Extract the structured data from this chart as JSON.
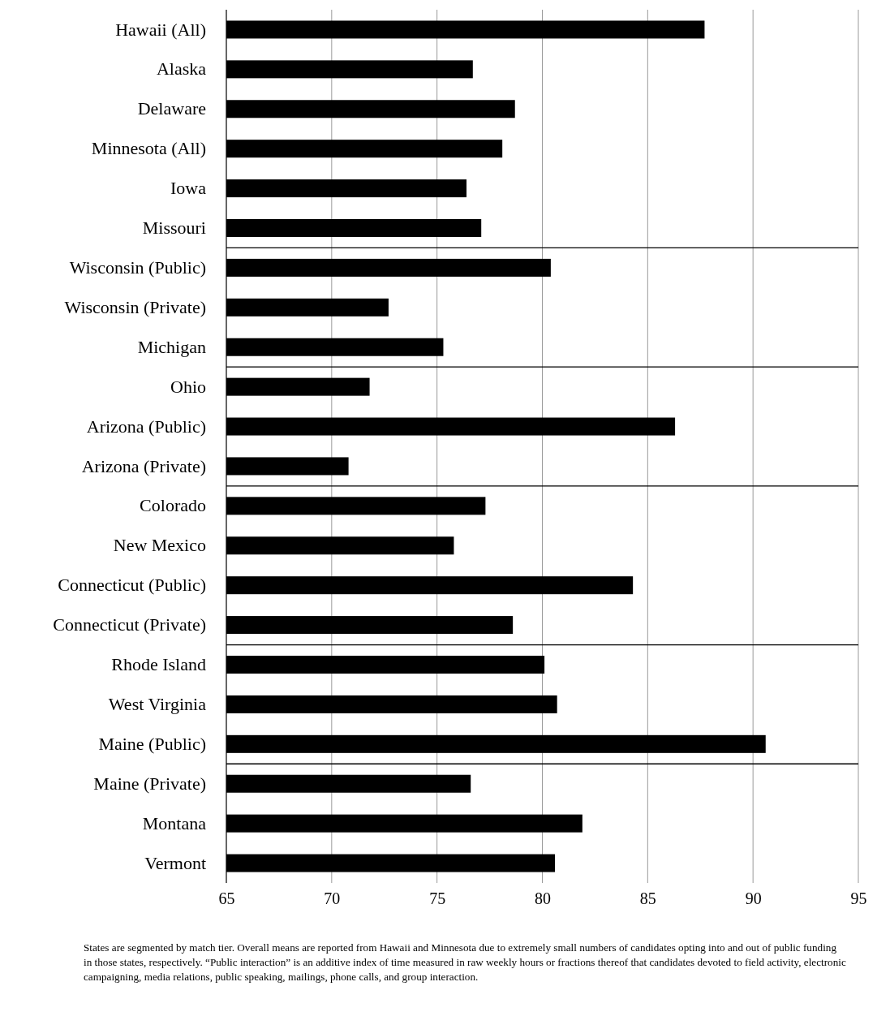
{
  "chart_data": {
    "type": "bar",
    "orientation": "horizontal",
    "categories": [
      "Hawaii (All)",
      "Alaska",
      "Delaware",
      "Minnesota (All)",
      "Iowa",
      "Missouri",
      "Wisconsin (Public)",
      "Wisconsin (Private)",
      "Michigan",
      "Ohio",
      "Arizona (Public)",
      "Arizona (Private)",
      "Colorado",
      "New Mexico",
      "Connecticut (Public)",
      "Connecticut (Private)",
      "Rhode Island",
      "West Virginia",
      "Maine (Public)",
      "Maine (Private)",
      "Montana",
      "Vermont"
    ],
    "values": [
      87.7,
      76.7,
      78.7,
      78.1,
      76.4,
      77.1,
      80.4,
      72.7,
      75.3,
      71.8,
      86.3,
      70.8,
      77.3,
      75.8,
      84.3,
      78.6,
      80.1,
      80.7,
      90.6,
      76.6,
      81.9,
      80.6
    ],
    "color": "#000000",
    "xlim": [
      65,
      95
    ],
    "xticks": [
      65,
      70,
      75,
      80,
      85,
      90,
      95
    ],
    "grid": "x",
    "ref_lines": [
      {
        "axis": "y",
        "value": "Missouri"
      },
      {
        "axis": "y",
        "value": "Michigan"
      },
      {
        "axis": "y",
        "value": "Arizona (Private)"
      },
      {
        "axis": "y",
        "value": "Connecticut (Private)"
      },
      {
        "axis": "y",
        "value": "Maine (Public)"
      }
    ],
    "annotations": [
      "States are segmented by match tier.  Overall means are reported from Hawaii and Minnesota due to extremely small numbers of candidates opting into and out of public funding in those states, respectively.  “Public interaction” is an additive index of time measured in raw weekly hours or fractions thereof that candidates devoted to field activity, electronic campaigning, media relations, public speaking, mailings, phone calls, and group interaction."
    ]
  }
}
